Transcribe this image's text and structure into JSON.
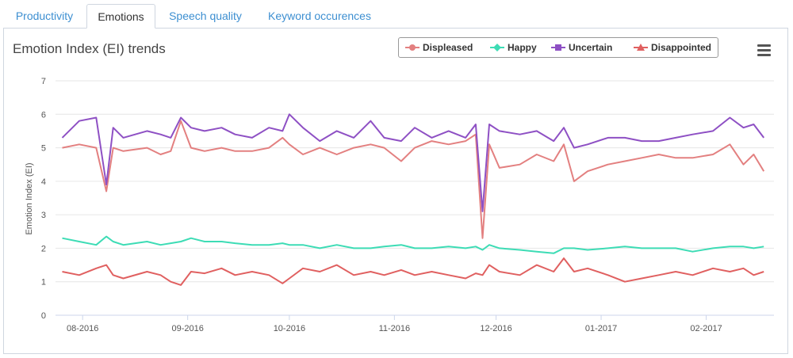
{
  "tabs": [
    {
      "label": "Productivity",
      "active": false
    },
    {
      "label": "Emotions",
      "active": true
    },
    {
      "label": "Speech quality",
      "active": false
    },
    {
      "label": "Keyword occurences",
      "active": false
    }
  ],
  "menu_icon": "hamburger-menu-icon",
  "chart_data": {
    "type": "line",
    "title": "Emotion Index (EI) trends",
    "xlabel": "",
    "ylabel": "Emotion Index (EI)",
    "ylim": [
      0,
      7
    ],
    "yticks": [
      "0",
      "1",
      "2",
      "3",
      "4",
      "5",
      "6",
      "7"
    ],
    "xlim": [
      "2016-07-24",
      "2017-02-21"
    ],
    "xticks": [
      {
        "date": "2016-08-01",
        "label": "08-2016"
      },
      {
        "date": "2016-09-01",
        "label": "09-2016"
      },
      {
        "date": "2016-10-01",
        "label": "10-2016"
      },
      {
        "date": "2016-11-01",
        "label": "11-2016"
      },
      {
        "date": "2016-12-01",
        "label": "12-2016"
      },
      {
        "date": "2017-01-01",
        "label": "01-2017"
      },
      {
        "date": "2017-02-01",
        "label": "02-2017"
      }
    ],
    "grid": true,
    "legend_position": "top-right",
    "series": [
      {
        "name": "Displeased",
        "color": "#e38080",
        "marker": "circle",
        "x": [
          "2016-07-26",
          "2016-07-31",
          "2016-08-05",
          "2016-08-08",
          "2016-08-10",
          "2016-08-13",
          "2016-08-20",
          "2016-08-24",
          "2016-08-27",
          "2016-08-30",
          "2016-09-02",
          "2016-09-06",
          "2016-09-11",
          "2016-09-15",
          "2016-09-20",
          "2016-09-25",
          "2016-09-29",
          "2016-10-01",
          "2016-10-05",
          "2016-10-10",
          "2016-10-15",
          "2016-10-20",
          "2016-10-25",
          "2016-10-29",
          "2016-11-03",
          "2016-11-07",
          "2016-11-12",
          "2016-11-17",
          "2016-11-22",
          "2016-11-25",
          "2016-11-27",
          "2016-11-29",
          "2016-12-02",
          "2016-12-08",
          "2016-12-13",
          "2016-12-18",
          "2016-12-21",
          "2016-12-24",
          "2016-12-28",
          "2017-01-03",
          "2017-01-08",
          "2017-01-13",
          "2017-01-18",
          "2017-01-23",
          "2017-01-28",
          "2017-02-03",
          "2017-02-08",
          "2017-02-12",
          "2017-02-15",
          "2017-02-18"
        ],
        "y": [
          5.0,
          5.1,
          5.0,
          3.7,
          5.0,
          4.9,
          5.0,
          4.8,
          4.9,
          5.8,
          5.0,
          4.9,
          5.0,
          4.9,
          4.9,
          5.0,
          5.3,
          5.1,
          4.8,
          5.0,
          4.8,
          5.0,
          5.1,
          5.0,
          4.6,
          5.0,
          5.2,
          5.1,
          5.2,
          5.4,
          2.3,
          5.1,
          4.4,
          4.5,
          4.8,
          4.6,
          5.1,
          4.0,
          4.3,
          4.5,
          4.6,
          4.7,
          4.8,
          4.7,
          4.7,
          4.8,
          5.1,
          4.5,
          4.8,
          4.3
        ]
      },
      {
        "name": "Happy",
        "color": "#3ddcb5",
        "marker": "diamond",
        "x": [
          "2016-07-26",
          "2016-07-31",
          "2016-08-05",
          "2016-08-08",
          "2016-08-10",
          "2016-08-13",
          "2016-08-20",
          "2016-08-24",
          "2016-08-27",
          "2016-08-30",
          "2016-09-02",
          "2016-09-06",
          "2016-09-11",
          "2016-09-15",
          "2016-09-20",
          "2016-09-25",
          "2016-09-29",
          "2016-10-01",
          "2016-10-05",
          "2016-10-10",
          "2016-10-15",
          "2016-10-20",
          "2016-10-25",
          "2016-10-29",
          "2016-11-03",
          "2016-11-07",
          "2016-11-12",
          "2016-11-17",
          "2016-11-22",
          "2016-11-25",
          "2016-11-27",
          "2016-11-29",
          "2016-12-02",
          "2016-12-08",
          "2016-12-13",
          "2016-12-18",
          "2016-12-21",
          "2016-12-24",
          "2016-12-28",
          "2017-01-03",
          "2017-01-08",
          "2017-01-13",
          "2017-01-18",
          "2017-01-23",
          "2017-01-28",
          "2017-02-03",
          "2017-02-08",
          "2017-02-12",
          "2017-02-15",
          "2017-02-18"
        ],
        "y": [
          2.3,
          2.2,
          2.1,
          2.35,
          2.2,
          2.1,
          2.2,
          2.1,
          2.15,
          2.2,
          2.3,
          2.2,
          2.2,
          2.15,
          2.1,
          2.1,
          2.15,
          2.1,
          2.1,
          2.0,
          2.1,
          2.0,
          2.0,
          2.05,
          2.1,
          2.0,
          2.0,
          2.05,
          2.0,
          2.05,
          1.95,
          2.1,
          2.0,
          1.95,
          1.9,
          1.85,
          2.0,
          2.0,
          1.95,
          2.0,
          2.05,
          2.0,
          2.0,
          2.0,
          1.9,
          2.0,
          2.05,
          2.05,
          2.0,
          2.05
        ]
      },
      {
        "name": "Uncertain",
        "color": "#8e50c4",
        "marker": "square",
        "x": [
          "2016-07-26",
          "2016-07-31",
          "2016-08-05",
          "2016-08-08",
          "2016-08-10",
          "2016-08-13",
          "2016-08-20",
          "2016-08-24",
          "2016-08-27",
          "2016-08-30",
          "2016-09-02",
          "2016-09-06",
          "2016-09-11",
          "2016-09-15",
          "2016-09-20",
          "2016-09-25",
          "2016-09-29",
          "2016-10-01",
          "2016-10-05",
          "2016-10-10",
          "2016-10-15",
          "2016-10-20",
          "2016-10-25",
          "2016-10-29",
          "2016-11-03",
          "2016-11-07",
          "2016-11-12",
          "2016-11-17",
          "2016-11-22",
          "2016-11-25",
          "2016-11-27",
          "2016-11-29",
          "2016-12-02",
          "2016-12-08",
          "2016-12-13",
          "2016-12-18",
          "2016-12-21",
          "2016-12-24",
          "2016-12-28",
          "2017-01-03",
          "2017-01-08",
          "2017-01-13",
          "2017-01-18",
          "2017-01-23",
          "2017-01-28",
          "2017-02-03",
          "2017-02-08",
          "2017-02-12",
          "2017-02-15",
          "2017-02-18"
        ],
        "y": [
          5.3,
          5.8,
          5.9,
          3.9,
          5.6,
          5.3,
          5.5,
          5.4,
          5.3,
          5.9,
          5.6,
          5.5,
          5.6,
          5.4,
          5.3,
          5.6,
          5.5,
          6.0,
          5.6,
          5.2,
          5.5,
          5.3,
          5.8,
          5.3,
          5.2,
          5.6,
          5.3,
          5.5,
          5.3,
          5.7,
          3.1,
          5.7,
          5.5,
          5.4,
          5.5,
          5.2,
          5.6,
          5.0,
          5.1,
          5.3,
          5.3,
          5.2,
          5.2,
          5.3,
          5.4,
          5.5,
          5.9,
          5.6,
          5.7,
          5.3
        ]
      },
      {
        "name": "Disappointed",
        "color": "#e06060",
        "marker": "triangle",
        "x": [
          "2016-07-26",
          "2016-07-31",
          "2016-08-05",
          "2016-08-08",
          "2016-08-10",
          "2016-08-13",
          "2016-08-20",
          "2016-08-24",
          "2016-08-27",
          "2016-08-30",
          "2016-09-02",
          "2016-09-06",
          "2016-09-11",
          "2016-09-15",
          "2016-09-20",
          "2016-09-25",
          "2016-09-29",
          "2016-10-01",
          "2016-10-05",
          "2016-10-10",
          "2016-10-15",
          "2016-10-20",
          "2016-10-25",
          "2016-10-29",
          "2016-11-03",
          "2016-11-07",
          "2016-11-12",
          "2016-11-17",
          "2016-11-22",
          "2016-11-25",
          "2016-11-27",
          "2016-11-29",
          "2016-12-02",
          "2016-12-08",
          "2016-12-13",
          "2016-12-18",
          "2016-12-21",
          "2016-12-24",
          "2016-12-28",
          "2017-01-03",
          "2017-01-08",
          "2017-01-13",
          "2017-01-18",
          "2017-01-23",
          "2017-01-28",
          "2017-02-03",
          "2017-02-08",
          "2017-02-12",
          "2017-02-15",
          "2017-02-18"
        ],
        "y": [
          1.3,
          1.2,
          1.4,
          1.5,
          1.2,
          1.1,
          1.3,
          1.2,
          1.0,
          0.9,
          1.3,
          1.25,
          1.4,
          1.2,
          1.3,
          1.2,
          0.95,
          1.1,
          1.4,
          1.3,
          1.5,
          1.2,
          1.3,
          1.2,
          1.35,
          1.2,
          1.3,
          1.2,
          1.1,
          1.25,
          1.2,
          1.5,
          1.3,
          1.2,
          1.5,
          1.3,
          1.7,
          1.3,
          1.4,
          1.2,
          1.0,
          1.1,
          1.2,
          1.3,
          1.2,
          1.4,
          1.3,
          1.4,
          1.2,
          1.3
        ]
      }
    ]
  }
}
